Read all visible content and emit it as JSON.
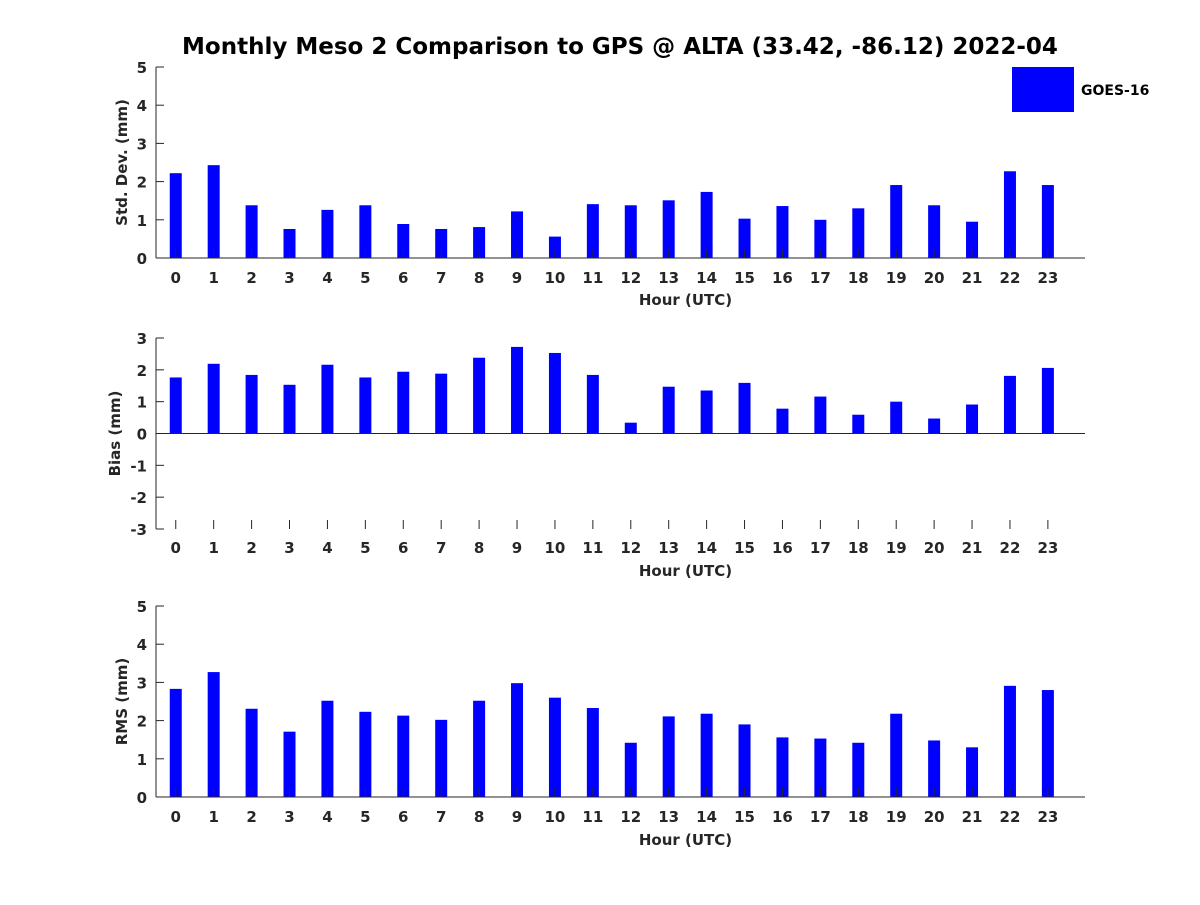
{
  "title": "Monthly Meso 2 Comparison to GPS @ ALTA (33.42, -86.12) 2022-04",
  "legend": {
    "label": "GOES-16",
    "color": "#0000ff"
  },
  "chart_data": [
    {
      "type": "bar",
      "categories": [
        "0",
        "1",
        "2",
        "3",
        "4",
        "5",
        "6",
        "7",
        "8",
        "9",
        "10",
        "11",
        "12",
        "13",
        "14",
        "15",
        "16",
        "17",
        "18",
        "19",
        "20",
        "21",
        "22",
        "23"
      ],
      "series": [
        {
          "name": "GOES-16",
          "values": [
            2.22,
            2.43,
            1.38,
            0.76,
            1.26,
            1.38,
            0.89,
            0.76,
            0.81,
            1.22,
            0.56,
            1.41,
            1.38,
            1.51,
            1.73,
            1.03,
            1.36,
            1.0,
            1.3,
            1.91,
            1.38,
            0.95,
            2.27,
            1.91
          ]
        }
      ],
      "xlabel": "Hour (UTC)",
      "ylabel": "Std. Dev. (mm)",
      "ylim": [
        0,
        5
      ],
      "yticks": [
        "0",
        "1",
        "2",
        "3",
        "4",
        "5"
      ],
      "grid": false,
      "legend": "top-right"
    },
    {
      "type": "bar",
      "categories": [
        "0",
        "1",
        "2",
        "3",
        "4",
        "5",
        "6",
        "7",
        "8",
        "9",
        "10",
        "11",
        "12",
        "13",
        "14",
        "15",
        "16",
        "17",
        "18",
        "19",
        "20",
        "21",
        "22",
        "23"
      ],
      "series": [
        {
          "name": "GOES-16",
          "values": [
            1.76,
            2.19,
            1.84,
            1.53,
            2.16,
            1.76,
            1.94,
            1.88,
            2.38,
            2.72,
            2.53,
            1.84,
            0.34,
            1.47,
            1.35,
            1.59,
            0.78,
            1.16,
            0.59,
            1.0,
            0.47,
            0.91,
            1.81,
            2.06
          ]
        }
      ],
      "xlabel": "Hour (UTC)",
      "ylabel": "Bias (mm)",
      "ylim": [
        -3,
        3
      ],
      "yticks": [
        "-3",
        "-2",
        "-1",
        "0",
        "1",
        "2",
        "3"
      ],
      "grid": false
    },
    {
      "type": "bar",
      "categories": [
        "0",
        "1",
        "2",
        "3",
        "4",
        "5",
        "6",
        "7",
        "8",
        "9",
        "10",
        "11",
        "12",
        "13",
        "14",
        "15",
        "16",
        "17",
        "18",
        "19",
        "20",
        "21",
        "22",
        "23"
      ],
      "series": [
        {
          "name": "GOES-16",
          "values": [
            2.83,
            3.27,
            2.31,
            1.71,
            2.52,
            2.23,
            2.13,
            2.02,
            2.52,
            2.98,
            2.6,
            2.33,
            1.42,
            2.11,
            2.18,
            1.9,
            1.56,
            1.53,
            1.42,
            2.18,
            1.48,
            1.3,
            2.91,
            2.8
          ]
        }
      ],
      "xlabel": "Hour (UTC)",
      "ylabel": "RMS (mm)",
      "ylim": [
        0,
        5
      ],
      "yticks": [
        "0",
        "1",
        "2",
        "3",
        "4",
        "5"
      ],
      "grid": false
    }
  ]
}
